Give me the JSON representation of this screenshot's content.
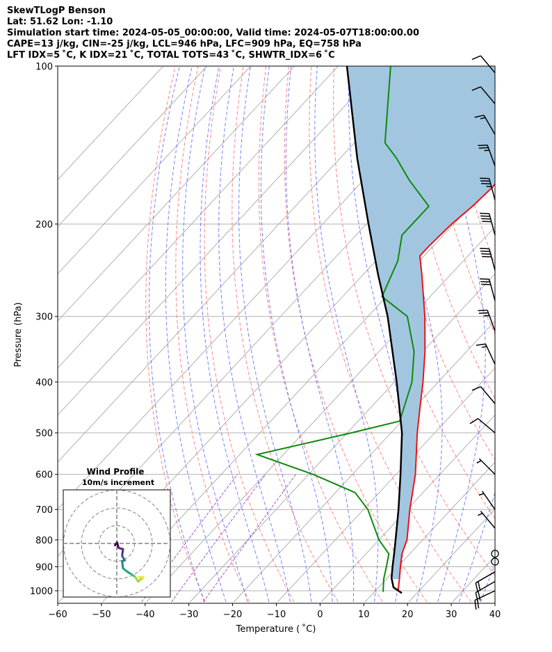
{
  "header": {
    "line1": "SkewTLogP Benson",
    "line2": "Lat: 51.62   Lon: -1.10",
    "line3": "Simulation start time: 2024-05-05_00:00:00, Valid time: 2024-05-07T18:00:00.00",
    "line4": "CAPE=13 j/kg, CIN=-25 j/kg, LCL=946 hPa, LFC=909 hPa, EQ=758 hPa",
    "line5": "LFT IDX=5 ˚C, K IDX=21 ˚C, TOTAL TOTS=43 ˚C, SHWTR_IDX=6 ˚C"
  },
  "chart_data": {
    "type": "skewt",
    "xlabel": "Temperature ( ˚C)",
    "ylabel": "Pressure (hPa)",
    "xlim": [
      -60,
      40
    ],
    "ylim": [
      1050,
      100
    ],
    "x_ticks": [
      "−60",
      "−50",
      "−40",
      "−30",
      "−20",
      "−10",
      "0",
      "10",
      "20",
      "30",
      "40"
    ],
    "y_ticks": [
      "100",
      "200",
      "300",
      "400",
      "500",
      "600",
      "700",
      "800",
      "900",
      "1000"
    ],
    "colors": {
      "temperature": "#ee1111",
      "dewpoint": "#0a8a0a",
      "parcel": "#000000",
      "cape_fill": "#a3c6e0",
      "isotherm": "#b0b0b0",
      "dry_adiabat": "#ff6f6f",
      "moist_adiabat": "#5a6cff",
      "mixing_ratio": "#a040c8"
    },
    "temperature": [
      {
        "p": 1010,
        "t": 16.5
      },
      {
        "p": 1000,
        "t": 15.2
      },
      {
        "p": 950,
        "t": 13.0
      },
      {
        "p": 900,
        "t": 10.6
      },
      {
        "p": 850,
        "t": 8.2
      },
      {
        "p": 800,
        "t": 6.4
      },
      {
        "p": 700,
        "t": 0.6
      },
      {
        "p": 600,
        "t": -5.6
      },
      {
        "p": 500,
        "t": -14.0
      },
      {
        "p": 450,
        "t": -18.5
      },
      {
        "p": 400,
        "t": -23.5
      },
      {
        "p": 350,
        "t": -29.5
      },
      {
        "p": 300,
        "t": -37.0
      },
      {
        "p": 250,
        "t": -46.5
      },
      {
        "p": 230,
        "t": -51.0
      },
      {
        "p": 220,
        "t": -51.0
      },
      {
        "p": 200,
        "t": -50.5
      },
      {
        "p": 185,
        "t": -49.5
      },
      {
        "p": 170,
        "t": -49.0
      },
      {
        "p": 160,
        "t": -49.5
      },
      {
        "p": 150,
        "t": -47.0
      },
      {
        "p": 140,
        "t": -46.0
      },
      {
        "p": 130,
        "t": -47.0
      },
      {
        "p": 100,
        "t": -54.0
      }
    ],
    "dewpoint": [
      {
        "p": 1005,
        "t": 12.0
      },
      {
        "p": 950,
        "t": 9.4
      },
      {
        "p": 900,
        "t": 7.4
      },
      {
        "p": 850,
        "t": 5.2
      },
      {
        "p": 800,
        "t": 0.0
      },
      {
        "p": 700,
        "t": -9.0
      },
      {
        "p": 650,
        "t": -15.5
      },
      {
        "p": 600,
        "t": -29.0
      },
      {
        "p": 550,
        "t": -46.0
      },
      {
        "p": 500,
        "t": -29.0
      },
      {
        "p": 475,
        "t": -20.5
      },
      {
        "p": 400,
        "t": -26.0
      },
      {
        "p": 350,
        "t": -32.0
      },
      {
        "p": 300,
        "t": -41.0
      },
      {
        "p": 275,
        "t": -51.0
      },
      {
        "p": 235,
        "t": -55.0
      },
      {
        "p": 210,
        "t": -59.5
      },
      {
        "p": 185,
        "t": -59.5
      },
      {
        "p": 165,
        "t": -69.5
      },
      {
        "p": 150,
        "t": -77.0
      },
      {
        "p": 140,
        "t": -83.0
      },
      {
        "p": 100,
        "t": -98.0
      }
    ],
    "parcel": [
      {
        "p": 1010,
        "t": 16.5
      },
      {
        "p": 985,
        "t": 13.4
      },
      {
        "p": 946,
        "t": 11.0
      },
      {
        "p": 900,
        "t": 8.8
      },
      {
        "p": 850,
        "t": 6.4
      },
      {
        "p": 800,
        "t": 3.8
      },
      {
        "p": 700,
        "t": -2.0
      },
      {
        "p": 600,
        "t": -9.0
      },
      {
        "p": 500,
        "t": -17.5
      },
      {
        "p": 400,
        "t": -29.5
      },
      {
        "p": 300,
        "t": -45.5
      },
      {
        "p": 250,
        "t": -56.5
      },
      {
        "p": 200,
        "t": -69.5
      },
      {
        "p": 150,
        "t": -86.0
      },
      {
        "p": 100,
        "t": -108.0
      }
    ],
    "wind_barbs": [
      {
        "p": 1000,
        "dir": 245,
        "speed": 20
      },
      {
        "p": 960,
        "dir": 240,
        "speed": 20
      },
      {
        "p": 920,
        "dir": 240,
        "speed": 20
      },
      {
        "p": 880,
        "dir": 0,
        "speed": 0
      },
      {
        "p": 850,
        "dir": 0,
        "speed": 0
      },
      {
        "p": 760,
        "dir": 320,
        "speed": 5
      },
      {
        "p": 700,
        "dir": 325,
        "speed": 5
      },
      {
        "p": 600,
        "dir": 315,
        "speed": 5
      },
      {
        "p": 500,
        "dir": 310,
        "speed": 10
      },
      {
        "p": 440,
        "dir": 320,
        "speed": 10
      },
      {
        "p": 370,
        "dir": 335,
        "speed": 15
      },
      {
        "p": 320,
        "dir": 340,
        "speed": 25
      },
      {
        "p": 280,
        "dir": 345,
        "speed": 30
      },
      {
        "p": 245,
        "dir": 345,
        "speed": 40
      },
      {
        "p": 210,
        "dir": 345,
        "speed": 40
      },
      {
        "p": 180,
        "dir": 345,
        "speed": 35
      },
      {
        "p": 155,
        "dir": 340,
        "speed": 25
      },
      {
        "p": 135,
        "dir": 330,
        "speed": 15
      },
      {
        "p": 118,
        "dir": 320,
        "speed": 10
      },
      {
        "p": 103,
        "dir": 320,
        "speed": 10
      }
    ],
    "hodograph": {
      "title": "Wind Profile",
      "subtitle": "10m/s increment",
      "rings": [
        10,
        20,
        30
      ],
      "points": [
        {
          "u": -1.0,
          "v": -1.0
        },
        {
          "u": 0.2,
          "v": 0.5
        },
        {
          "u": 1.0,
          "v": -2.5
        },
        {
          "u": 3.5,
          "v": -3.2
        },
        {
          "u": 3.0,
          "v": -7.0
        },
        {
          "u": 4.5,
          "v": -9.5
        },
        {
          "u": 3.0,
          "v": -10.0
        },
        {
          "u": 3.5,
          "v": -14.0
        },
        {
          "u": 6.0,
          "v": -16.0
        },
        {
          "u": 8.5,
          "v": -17.5
        },
        {
          "u": 10.5,
          "v": -19.0
        },
        {
          "u": 12.0,
          "v": -21.5
        },
        {
          "u": 15.0,
          "v": -19.0
        },
        {
          "u": 12.5,
          "v": -19.0
        }
      ]
    }
  }
}
